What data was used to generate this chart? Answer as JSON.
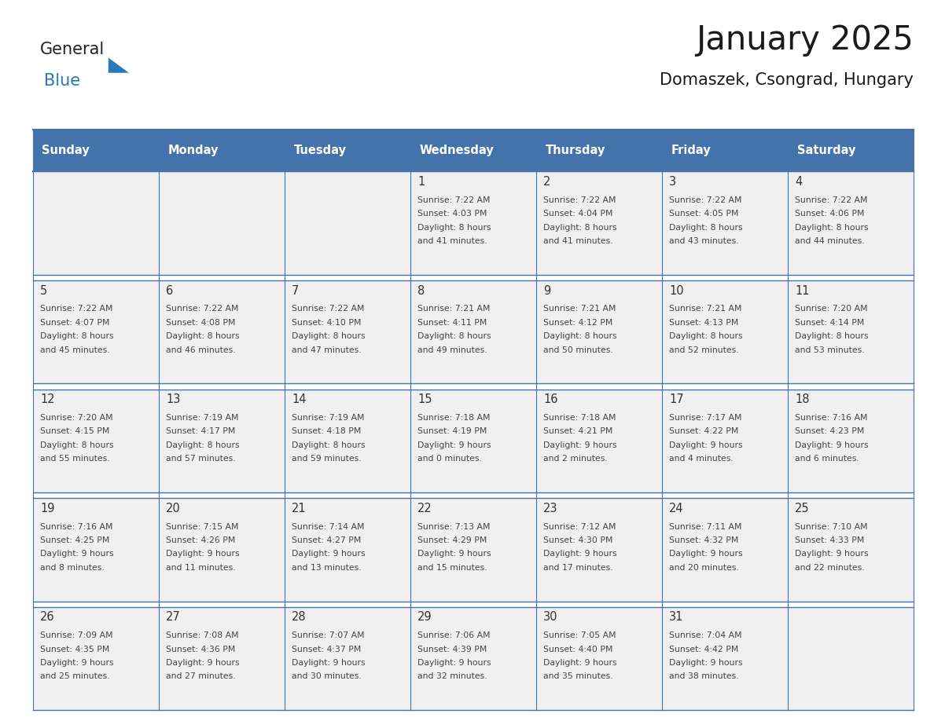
{
  "title": "January 2025",
  "subtitle": "Domaszek, Csongrad, Hungary",
  "header_bg": "#4472AA",
  "header_text_color": "#FFFFFF",
  "cell_bg": "#F0F0F0",
  "day_number_color": "#333333",
  "cell_text_color": "#444444",
  "grid_line_color": "#4472AA",
  "separator_color": "#FFFFFF",
  "days_of_week": [
    "Sunday",
    "Monday",
    "Tuesday",
    "Wednesday",
    "Thursday",
    "Friday",
    "Saturday"
  ],
  "logo_general_color": "#222222",
  "logo_blue_color": "#2878BE",
  "logo_triangle_color": "#2878BE",
  "calendar_data": [
    [
      {
        "day": null,
        "sunrise": null,
        "sunset": null,
        "daylight": null
      },
      {
        "day": null,
        "sunrise": null,
        "sunset": null,
        "daylight": null
      },
      {
        "day": null,
        "sunrise": null,
        "sunset": null,
        "daylight": null
      },
      {
        "day": 1,
        "sunrise": "7:22 AM",
        "sunset": "4:03 PM",
        "daylight": "8 hours\nand 41 minutes."
      },
      {
        "day": 2,
        "sunrise": "7:22 AM",
        "sunset": "4:04 PM",
        "daylight": "8 hours\nand 41 minutes."
      },
      {
        "day": 3,
        "sunrise": "7:22 AM",
        "sunset": "4:05 PM",
        "daylight": "8 hours\nand 43 minutes."
      },
      {
        "day": 4,
        "sunrise": "7:22 AM",
        "sunset": "4:06 PM",
        "daylight": "8 hours\nand 44 minutes."
      }
    ],
    [
      {
        "day": 5,
        "sunrise": "7:22 AM",
        "sunset": "4:07 PM",
        "daylight": "8 hours\nand 45 minutes."
      },
      {
        "day": 6,
        "sunrise": "7:22 AM",
        "sunset": "4:08 PM",
        "daylight": "8 hours\nand 46 minutes."
      },
      {
        "day": 7,
        "sunrise": "7:22 AM",
        "sunset": "4:10 PM",
        "daylight": "8 hours\nand 47 minutes."
      },
      {
        "day": 8,
        "sunrise": "7:21 AM",
        "sunset": "4:11 PM",
        "daylight": "8 hours\nand 49 minutes."
      },
      {
        "day": 9,
        "sunrise": "7:21 AM",
        "sunset": "4:12 PM",
        "daylight": "8 hours\nand 50 minutes."
      },
      {
        "day": 10,
        "sunrise": "7:21 AM",
        "sunset": "4:13 PM",
        "daylight": "8 hours\nand 52 minutes."
      },
      {
        "day": 11,
        "sunrise": "7:20 AM",
        "sunset": "4:14 PM",
        "daylight": "8 hours\nand 53 minutes."
      }
    ],
    [
      {
        "day": 12,
        "sunrise": "7:20 AM",
        "sunset": "4:15 PM",
        "daylight": "8 hours\nand 55 minutes."
      },
      {
        "day": 13,
        "sunrise": "7:19 AM",
        "sunset": "4:17 PM",
        "daylight": "8 hours\nand 57 minutes."
      },
      {
        "day": 14,
        "sunrise": "7:19 AM",
        "sunset": "4:18 PM",
        "daylight": "8 hours\nand 59 minutes."
      },
      {
        "day": 15,
        "sunrise": "7:18 AM",
        "sunset": "4:19 PM",
        "daylight": "9 hours\nand 0 minutes."
      },
      {
        "day": 16,
        "sunrise": "7:18 AM",
        "sunset": "4:21 PM",
        "daylight": "9 hours\nand 2 minutes."
      },
      {
        "day": 17,
        "sunrise": "7:17 AM",
        "sunset": "4:22 PM",
        "daylight": "9 hours\nand 4 minutes."
      },
      {
        "day": 18,
        "sunrise": "7:16 AM",
        "sunset": "4:23 PM",
        "daylight": "9 hours\nand 6 minutes."
      }
    ],
    [
      {
        "day": 19,
        "sunrise": "7:16 AM",
        "sunset": "4:25 PM",
        "daylight": "9 hours\nand 8 minutes."
      },
      {
        "day": 20,
        "sunrise": "7:15 AM",
        "sunset": "4:26 PM",
        "daylight": "9 hours\nand 11 minutes."
      },
      {
        "day": 21,
        "sunrise": "7:14 AM",
        "sunset": "4:27 PM",
        "daylight": "9 hours\nand 13 minutes."
      },
      {
        "day": 22,
        "sunrise": "7:13 AM",
        "sunset": "4:29 PM",
        "daylight": "9 hours\nand 15 minutes."
      },
      {
        "day": 23,
        "sunrise": "7:12 AM",
        "sunset": "4:30 PM",
        "daylight": "9 hours\nand 17 minutes."
      },
      {
        "day": 24,
        "sunrise": "7:11 AM",
        "sunset": "4:32 PM",
        "daylight": "9 hours\nand 20 minutes."
      },
      {
        "day": 25,
        "sunrise": "7:10 AM",
        "sunset": "4:33 PM",
        "daylight": "9 hours\nand 22 minutes."
      }
    ],
    [
      {
        "day": 26,
        "sunrise": "7:09 AM",
        "sunset": "4:35 PM",
        "daylight": "9 hours\nand 25 minutes."
      },
      {
        "day": 27,
        "sunrise": "7:08 AM",
        "sunset": "4:36 PM",
        "daylight": "9 hours\nand 27 minutes."
      },
      {
        "day": 28,
        "sunrise": "7:07 AM",
        "sunset": "4:37 PM",
        "daylight": "9 hours\nand 30 minutes."
      },
      {
        "day": 29,
        "sunrise": "7:06 AM",
        "sunset": "4:39 PM",
        "daylight": "9 hours\nand 32 minutes."
      },
      {
        "day": 30,
        "sunrise": "7:05 AM",
        "sunset": "4:40 PM",
        "daylight": "9 hours\nand 35 minutes."
      },
      {
        "day": 31,
        "sunrise": "7:04 AM",
        "sunset": "4:42 PM",
        "daylight": "9 hours\nand 38 minutes."
      },
      {
        "day": null,
        "sunrise": null,
        "sunset": null,
        "daylight": null
      }
    ]
  ]
}
